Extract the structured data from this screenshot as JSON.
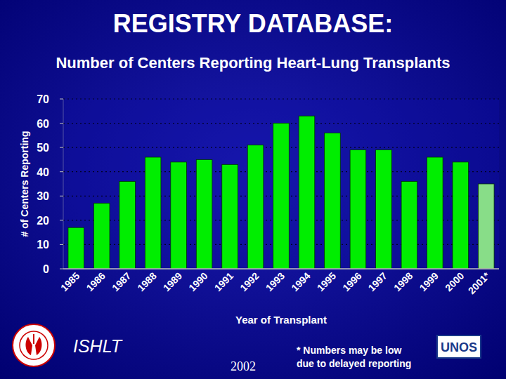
{
  "chart_data": {
    "type": "bar",
    "title": "REGISTRY DATABASE:",
    "subtitle": "Number of Centers Reporting Heart-Lung Transplants",
    "x_label": "Year of Transplant",
    "y_label": "# of Centers Reporting",
    "categories": [
      "1985",
      "1986",
      "1987",
      "1988",
      "1989",
      "1990",
      "1991",
      "1992",
      "1993",
      "1994",
      "1995",
      "1996",
      "1997",
      "1998",
      "1999",
      "2000",
      "2001*"
    ],
    "values": [
      17,
      27,
      36,
      46,
      44,
      45,
      43,
      51,
      60,
      63,
      56,
      49,
      49,
      36,
      46,
      44,
      35
    ],
    "colors": [
      "#00ee00",
      "#00ee00",
      "#00ee00",
      "#00ee00",
      "#00ee00",
      "#00ee00",
      "#00ee00",
      "#00ee00",
      "#00ee00",
      "#00ee00",
      "#00ee00",
      "#00ee00",
      "#00ee00",
      "#00ee00",
      "#00ee00",
      "#00ee00",
      "#88dd88"
    ],
    "ylim": [
      0,
      70
    ],
    "yticks": [
      0,
      10,
      20,
      30,
      40,
      50,
      60,
      70
    ],
    "grid": true,
    "annotations": {
      "organization": "ISHLT",
      "year": "2002",
      "footnote": [
        "* Numbers may be low",
        "due to delayed reporting"
      ],
      "logo": "UNOS"
    }
  }
}
